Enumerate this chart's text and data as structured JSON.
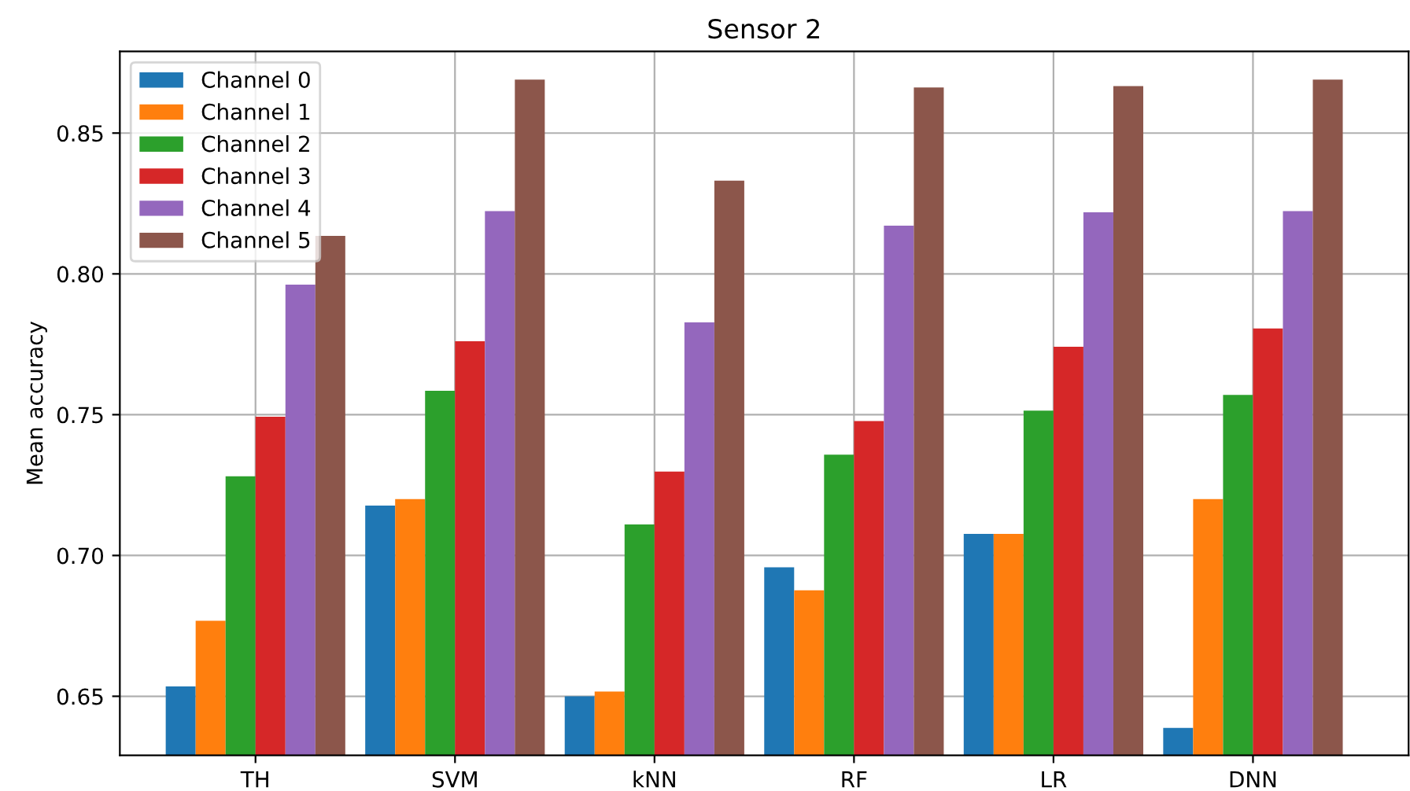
{
  "chart_data": {
    "type": "bar",
    "title": "Sensor 2",
    "ylabel": "Mean accuracy",
    "categories": [
      "TH",
      "SVM",
      "kNN",
      "RF",
      "LR",
      "DNN"
    ],
    "series": [
      {
        "name": "Channel 0",
        "color": "#1f77b4",
        "values": [
          0.6535,
          0.7177,
          0.65,
          0.6958,
          0.7077,
          0.6388
        ]
      },
      {
        "name": "Channel 1",
        "color": "#ff7f0e",
        "values": [
          0.6768,
          0.72,
          0.6517,
          0.6876,
          0.7077,
          0.72
        ]
      },
      {
        "name": "Channel 2",
        "color": "#2ca02c",
        "values": [
          0.7281,
          0.7585,
          0.711,
          0.7358,
          0.7514,
          0.757
        ]
      },
      {
        "name": "Channel 3",
        "color": "#d62728",
        "values": [
          0.7493,
          0.7761,
          0.7298,
          0.7477,
          0.7741,
          0.7806
        ]
      },
      {
        "name": "Channel 4",
        "color": "#9467bd",
        "values": [
          0.7962,
          0.8223,
          0.7828,
          0.8171,
          0.8219,
          0.8223
        ]
      },
      {
        "name": "Channel 5",
        "color": "#8c564b",
        "values": [
          0.8135,
          0.869,
          0.8331,
          0.8662,
          0.8667,
          0.869
        ]
      }
    ],
    "ylim": [
      0.629,
      0.879
    ],
    "yticks": [
      {
        "value": 0.65,
        "label": "0.65"
      },
      {
        "value": 0.7,
        "label": "0.70"
      },
      {
        "value": 0.75,
        "label": "0.75"
      },
      {
        "value": 0.8,
        "label": "0.80"
      },
      {
        "value": 0.85,
        "label": "0.85"
      }
    ],
    "grid": true,
    "legend": "top left"
  }
}
